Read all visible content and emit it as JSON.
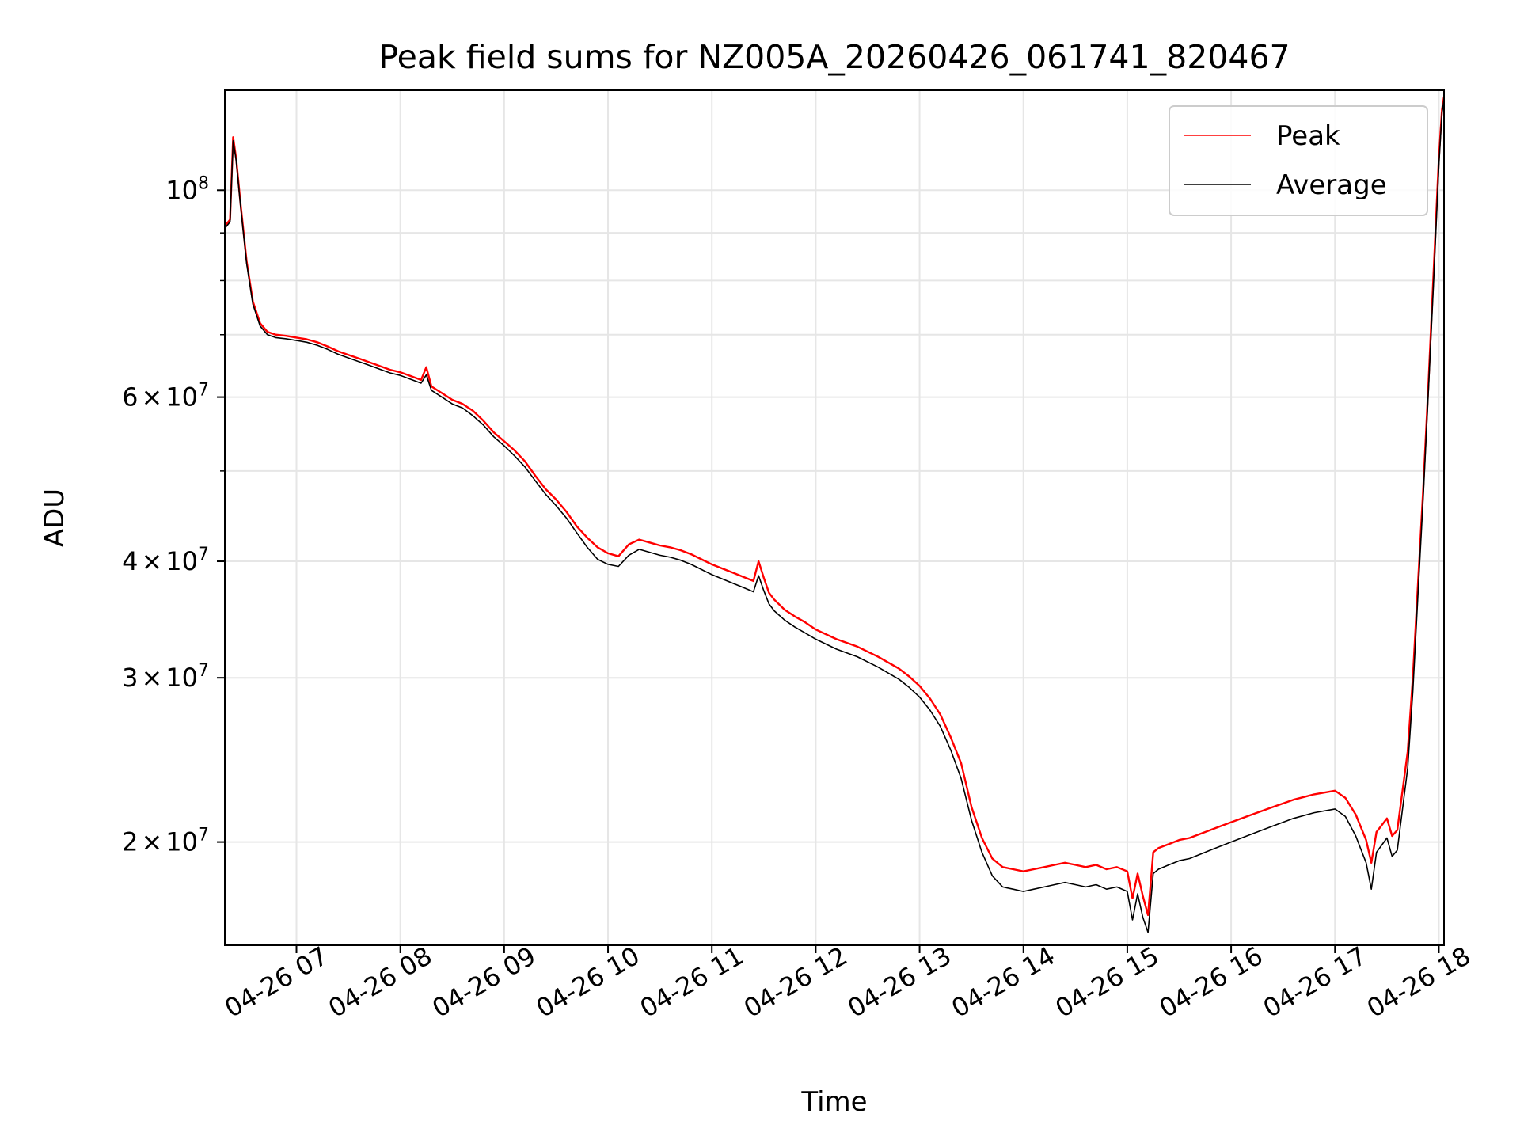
{
  "chart_data": {
    "type": "line",
    "title": "Peak field sums for NZ005A_20260426_061741_820467",
    "xlabel": "Time",
    "ylabel": "ADU",
    "yscale": "log",
    "ylim": [
      15500000,
      128000000
    ],
    "xlim_hours": [
      6.31,
      18.05
    ],
    "grid": true,
    "legend_position": "top-right",
    "x_ticks": [
      {
        "hour": 7,
        "label": "04-26 07"
      },
      {
        "hour": 8,
        "label": "04-26 08"
      },
      {
        "hour": 9,
        "label": "04-26 09"
      },
      {
        "hour": 10,
        "label": "04-26 10"
      },
      {
        "hour": 11,
        "label": "04-26 11"
      },
      {
        "hour": 12,
        "label": "04-26 12"
      },
      {
        "hour": 13,
        "label": "04-26 13"
      },
      {
        "hour": 14,
        "label": "04-26 14"
      },
      {
        "hour": 15,
        "label": "04-26 15"
      },
      {
        "hour": 16,
        "label": "04-26 16"
      },
      {
        "hour": 17,
        "label": "04-26 17"
      },
      {
        "hour": 18,
        "label": "04-26 18"
      }
    ],
    "y_major_ticks": [
      {
        "value": 100000000,
        "mantissa": "",
        "exponent": "8"
      },
      {
        "value": 60000000,
        "mantissa": "6",
        "exponent": "7"
      },
      {
        "value": 40000000,
        "mantissa": "4",
        "exponent": "7"
      },
      {
        "value": 30000000,
        "mantissa": "3",
        "exponent": "7"
      },
      {
        "value": 20000000,
        "mantissa": "2",
        "exponent": "7"
      }
    ],
    "y_minor_ticks": [
      90000000,
      80000000,
      70000000,
      50000000
    ],
    "series": [
      {
        "name": "Peak",
        "color": "#ff0000",
        "x_hours": [
          6.31,
          6.36,
          6.39,
          6.42,
          6.46,
          6.52,
          6.58,
          6.65,
          6.72,
          6.8,
          6.9,
          7.0,
          7.1,
          7.2,
          7.3,
          7.4,
          7.5,
          7.6,
          7.7,
          7.8,
          7.9,
          8.0,
          8.1,
          8.2,
          8.25,
          8.3,
          8.4,
          8.5,
          8.6,
          8.7,
          8.8,
          8.9,
          9.0,
          9.1,
          9.2,
          9.3,
          9.4,
          9.5,
          9.6,
          9.7,
          9.8,
          9.9,
          10.0,
          10.1,
          10.2,
          10.3,
          10.4,
          10.5,
          10.6,
          10.7,
          10.8,
          10.9,
          11.0,
          11.1,
          11.2,
          11.3,
          11.4,
          11.45,
          11.5,
          11.55,
          11.6,
          11.7,
          11.8,
          11.9,
          12.0,
          12.2,
          12.4,
          12.6,
          12.8,
          12.9,
          13.0,
          13.1,
          13.2,
          13.3,
          13.4,
          13.5,
          13.6,
          13.7,
          13.8,
          13.9,
          14.0,
          14.1,
          14.2,
          14.3,
          14.4,
          14.5,
          14.6,
          14.7,
          14.8,
          14.9,
          15.0,
          15.05,
          15.1,
          15.15,
          15.2,
          15.25,
          15.3,
          15.4,
          15.5,
          15.6,
          15.7,
          15.8,
          15.9,
          16.0,
          16.2,
          16.4,
          16.6,
          16.8,
          17.0,
          17.1,
          17.2,
          17.3,
          17.35,
          17.4,
          17.5,
          17.55,
          17.6,
          17.7,
          17.75,
          17.8,
          17.85,
          17.9,
          17.95,
          18.0,
          18.03,
          18.05
        ],
        "values": [
          91500000,
          93000000,
          114000000,
          108000000,
          97000000,
          84000000,
          76000000,
          72000000,
          70500000,
          70000000,
          69800000,
          69500000,
          69200000,
          68700000,
          68000000,
          67200000,
          66600000,
          66000000,
          65400000,
          64800000,
          64200000,
          63800000,
          63200000,
          62600000,
          64600000,
          61600000,
          60600000,
          59600000,
          59000000,
          58000000,
          56600000,
          55000000,
          53800000,
          52600000,
          51200000,
          49400000,
          47800000,
          46600000,
          45200000,
          43600000,
          42400000,
          41400000,
          40800000,
          40500000,
          41700000,
          42200000,
          41900000,
          41600000,
          41400000,
          41100000,
          40700000,
          40200000,
          39700000,
          39300000,
          38900000,
          38500000,
          38100000,
          40000000,
          38400000,
          37000000,
          36400000,
          35500000,
          34900000,
          34400000,
          33800000,
          33000000,
          32400000,
          31600000,
          30700000,
          30100000,
          29400000,
          28500000,
          27400000,
          25900000,
          24300000,
          21800000,
          20200000,
          19200000,
          18800000,
          18700000,
          18600000,
          18700000,
          18800000,
          18900000,
          19000000,
          18900000,
          18800000,
          18900000,
          18700000,
          18800000,
          18600000,
          17400000,
          18500000,
          17500000,
          16700000,
          19500000,
          19700000,
          19900000,
          20100000,
          20200000,
          20400000,
          20600000,
          20800000,
          21000000,
          21400000,
          21800000,
          22200000,
          22500000,
          22700000,
          22300000,
          21400000,
          20100000,
          19000000,
          20500000,
          21200000,
          20300000,
          20600000,
          25000000,
          30000000,
          38000000,
          48000000,
          62000000,
          82000000,
          108000000,
          122000000,
          126000000
        ]
      },
      {
        "name": "Average",
        "color": "#000000",
        "x_hours": [
          6.31,
          6.36,
          6.39,
          6.42,
          6.46,
          6.52,
          6.58,
          6.65,
          6.72,
          6.8,
          6.9,
          7.0,
          7.1,
          7.2,
          7.3,
          7.4,
          7.5,
          7.6,
          7.7,
          7.8,
          7.9,
          8.0,
          8.1,
          8.2,
          8.25,
          8.3,
          8.4,
          8.5,
          8.6,
          8.7,
          8.8,
          8.9,
          9.0,
          9.1,
          9.2,
          9.3,
          9.4,
          9.5,
          9.6,
          9.7,
          9.8,
          9.9,
          10.0,
          10.1,
          10.2,
          10.3,
          10.4,
          10.5,
          10.6,
          10.7,
          10.8,
          10.9,
          11.0,
          11.1,
          11.2,
          11.3,
          11.4,
          11.45,
          11.5,
          11.55,
          11.6,
          11.7,
          11.8,
          11.9,
          12.0,
          12.2,
          12.4,
          12.6,
          12.8,
          12.9,
          13.0,
          13.1,
          13.2,
          13.3,
          13.4,
          13.5,
          13.6,
          13.7,
          13.8,
          13.9,
          14.0,
          14.1,
          14.2,
          14.3,
          14.4,
          14.5,
          14.6,
          14.7,
          14.8,
          14.9,
          15.0,
          15.05,
          15.1,
          15.15,
          15.2,
          15.25,
          15.3,
          15.4,
          15.5,
          15.6,
          15.7,
          15.8,
          15.9,
          16.0,
          16.2,
          16.4,
          16.6,
          16.8,
          17.0,
          17.1,
          17.2,
          17.3,
          17.35,
          17.4,
          17.5,
          17.55,
          17.6,
          17.7,
          17.75,
          17.8,
          17.85,
          17.9,
          17.95,
          18.0,
          18.03,
          18.05
        ],
        "values": [
          91000000,
          92500000,
          113000000,
          107500000,
          96500000,
          83500000,
          75500000,
          71500000,
          70000000,
          69500000,
          69300000,
          69000000,
          68700000,
          68200000,
          67500000,
          66700000,
          66100000,
          65500000,
          64900000,
          64300000,
          63700000,
          63300000,
          62700000,
          62100000,
          63400000,
          61000000,
          60000000,
          59000000,
          58400000,
          57300000,
          56000000,
          54400000,
          53200000,
          51900000,
          50500000,
          48800000,
          47200000,
          45900000,
          44500000,
          42900000,
          41400000,
          40200000,
          39700000,
          39500000,
          40600000,
          41200000,
          40900000,
          40600000,
          40400000,
          40100000,
          39700000,
          39200000,
          38700000,
          38300000,
          37900000,
          37500000,
          37100000,
          38600000,
          37200000,
          36000000,
          35400000,
          34600000,
          34000000,
          33500000,
          33000000,
          32200000,
          31600000,
          30800000,
          29900000,
          29300000,
          28600000,
          27700000,
          26600000,
          25100000,
          23400000,
          21100000,
          19500000,
          18400000,
          17900000,
          17800000,
          17700000,
          17800000,
          17900000,
          18000000,
          18100000,
          18000000,
          17900000,
          18000000,
          17800000,
          17900000,
          17700000,
          16500000,
          17600000,
          16600000,
          16000000,
          18500000,
          18700000,
          18900000,
          19100000,
          19200000,
          19400000,
          19600000,
          19800000,
          20000000,
          20400000,
          20800000,
          21200000,
          21500000,
          21700000,
          21300000,
          20300000,
          19000000,
          17800000,
          19500000,
          20200000,
          19300000,
          19600000,
          24000000,
          29000000,
          37000000,
          47000000,
          61000000,
          80000000,
          106000000,
          121000000,
          125000000
        ]
      }
    ]
  }
}
